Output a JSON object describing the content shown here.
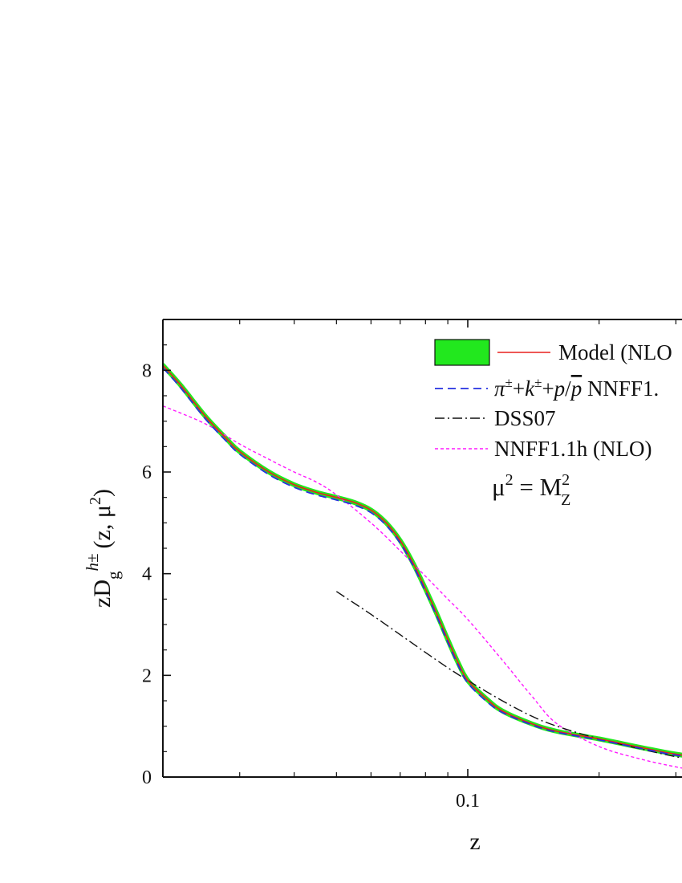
{
  "chart_data": {
    "type": "line",
    "xscale": "log",
    "xlim": [
      0.02,
      0.5
    ],
    "ylim": [
      0,
      9
    ],
    "xlabel": "z",
    "ylabel": {
      "prefix": "zD",
      "sub": "g",
      "sup": "h±",
      "args_open": "(z, μ",
      "args_sup": "2",
      "args_close": ")"
    },
    "x_ticks": [
      {
        "value": 0.1,
        "label": "0.1"
      }
    ],
    "y_ticks": [
      {
        "value": 0,
        "label": "0"
      },
      {
        "value": 2,
        "label": "2"
      },
      {
        "value": 4,
        "label": "4"
      },
      {
        "value": 6,
        "label": "6"
      },
      {
        "value": 8,
        "label": "8"
      }
    ],
    "grid": false,
    "legend_position": "top-right",
    "annotation": {
      "prefix": "μ",
      "sup": "2",
      "eq": " = M",
      "sup2": "2",
      "sub2": "Z"
    },
    "series": [
      {
        "name": "Model (NLO",
        "style": "solid",
        "color": "#e8201e",
        "band_color": "#22e81e",
        "x": [
          0.02,
          0.022,
          0.025,
          0.028,
          0.03,
          0.035,
          0.04,
          0.045,
          0.05,
          0.055,
          0.06,
          0.065,
          0.07,
          0.075,
          0.08,
          0.085,
          0.09,
          0.095,
          0.1,
          0.11,
          0.12,
          0.14,
          0.16,
          0.2,
          0.25,
          0.3,
          0.4,
          0.5
        ],
        "y": [
          8.1,
          7.7,
          7.1,
          6.65,
          6.4,
          6.0,
          5.75,
          5.6,
          5.5,
          5.4,
          5.25,
          5.0,
          4.65,
          4.2,
          3.7,
          3.2,
          2.7,
          2.25,
          1.9,
          1.55,
          1.3,
          1.05,
          0.9,
          0.75,
          0.58,
          0.45,
          0.3,
          0.2
        ]
      },
      {
        "name": "π±+k±+p/p NNFF1.",
        "style": "dashed",
        "color": "#2530e0",
        "x": [
          0.02,
          0.022,
          0.025,
          0.028,
          0.03,
          0.035,
          0.04,
          0.045,
          0.05,
          0.055,
          0.06,
          0.065,
          0.07,
          0.075,
          0.08,
          0.085,
          0.09,
          0.095,
          0.1,
          0.11,
          0.12,
          0.14,
          0.16,
          0.2,
          0.25,
          0.3,
          0.4,
          0.5
        ],
        "y": [
          8.05,
          7.65,
          7.05,
          6.6,
          6.35,
          5.95,
          5.7,
          5.55,
          5.45,
          5.35,
          5.2,
          4.95,
          4.6,
          4.15,
          3.65,
          3.15,
          2.65,
          2.2,
          1.85,
          1.5,
          1.27,
          1.03,
          0.88,
          0.73,
          0.56,
          0.43,
          0.28,
          0.18
        ]
      },
      {
        "name": "DSS07",
        "style": "dashdot",
        "color": "#111111",
        "x": [
          0.05,
          0.06,
          0.07,
          0.08,
          0.09,
          0.1,
          0.12,
          0.14,
          0.16,
          0.2,
          0.25,
          0.3,
          0.4,
          0.5
        ],
        "y": [
          3.65,
          3.2,
          2.8,
          2.45,
          2.15,
          1.9,
          1.5,
          1.2,
          1.0,
          0.75,
          0.55,
          0.4,
          0.2,
          0.1
        ]
      },
      {
        "name": "NNFF1.1h (NLO)",
        "style": "dotted",
        "color": "#ff19ff",
        "x": [
          0.02,
          0.025,
          0.03,
          0.035,
          0.04,
          0.045,
          0.05,
          0.06,
          0.07,
          0.08,
          0.09,
          0.1,
          0.12,
          0.14,
          0.16,
          0.2,
          0.25,
          0.3,
          0.35,
          0.4,
          0.5
        ],
        "y": [
          7.3,
          6.95,
          6.55,
          6.25,
          6.0,
          5.8,
          5.55,
          5.0,
          4.45,
          3.95,
          3.5,
          3.1,
          2.3,
          1.6,
          1.05,
          0.6,
          0.35,
          0.2,
          0.1,
          0.06,
          0.05
        ]
      }
    ]
  }
}
